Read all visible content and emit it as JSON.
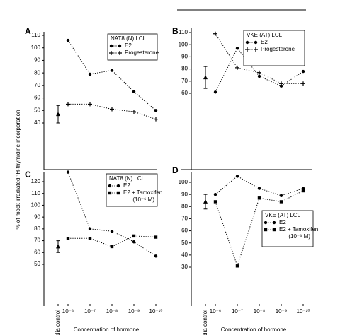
{
  "ylabel": "% of mock irradiated ³H-thymidine incorporation",
  "chart_data": [
    {
      "type": "line",
      "label": "A",
      "legend_title": "NAT8 (N) LCL",
      "ylim": [
        40,
        110
      ],
      "yticks": [
        40,
        50,
        60,
        70,
        80,
        90,
        100,
        110
      ],
      "control": {
        "value": 47,
        "error": 7
      },
      "series": [
        {
          "name": "E2",
          "color": "#000000",
          "marker": "circle",
          "values": [
            null,
            106,
            79,
            82,
            65,
            50
          ]
        },
        {
          "name": "Progesterone",
          "color": "#000000",
          "marker": "plus",
          "values": [
            null,
            55,
            55,
            51,
            49,
            43
          ]
        }
      ]
    },
    {
      "type": "line",
      "label": "B",
      "legend_title": "VKE (AT) LCL",
      "ylim": [
        60,
        110
      ],
      "yticks": [
        60,
        70,
        80,
        90,
        100,
        110
      ],
      "control": {
        "value": 73,
        "error": 9
      },
      "series": [
        {
          "name": "E2",
          "color": "#000000",
          "marker": "circle",
          "values": [
            null,
            61,
            97,
            74,
            66,
            78
          ]
        },
        {
          "name": "Progesterone",
          "color": "#000000",
          "marker": "plus",
          "values": [
            null,
            109,
            81,
            77,
            68,
            68
          ]
        }
      ]
    },
    {
      "type": "line",
      "label": "C",
      "legend_title": "NAT8 (N) LCL",
      "legend_note": "(10⁻⁶ M)",
      "categories": [
        "Media control",
        "10⁻⁶",
        "10⁻⁷",
        "10⁻⁸",
        "10⁻⁹",
        "10⁻¹⁰"
      ],
      "xlabel": "Concentration of hormone",
      "ylim": [
        50,
        120
      ],
      "yticks": [
        50,
        60,
        70,
        80,
        90,
        100,
        110,
        120
      ],
      "control": {
        "value": 65,
        "error": 5
      },
      "series": [
        {
          "name": "E2",
          "color": "#000000",
          "marker": "circle",
          "values": [
            null,
            128,
            80,
            78,
            69,
            57
          ]
        },
        {
          "name": "E2 + Tamoxifen",
          "color": "#000000",
          "marker": "square",
          "values": [
            null,
            72,
            72,
            65,
            74,
            73
          ]
        }
      ]
    },
    {
      "type": "line",
      "label": "D",
      "legend_title": "VKE (AT) LCL",
      "legend_note": "(10⁻⁶ M)",
      "categories": [
        "Media control",
        "10⁻⁶",
        "10⁻⁷",
        "10⁻⁸",
        "10⁻⁹",
        "10⁻¹⁰"
      ],
      "xlabel": "Concentration of hormone",
      "ylim": [
        30,
        100
      ],
      "yticks": [
        30,
        40,
        50,
        60,
        70,
        80,
        90,
        100
      ],
      "control": {
        "value": 84,
        "error": 6
      },
      "series": [
        {
          "name": "E2",
          "color": "#000000",
          "marker": "circle",
          "values": [
            null,
            90,
            105,
            95,
            89,
            95
          ]
        },
        {
          "name": "E2 + Tamoxifen",
          "color": "#000000",
          "marker": "square",
          "values": [
            null,
            84,
            31,
            87,
            84,
            93
          ]
        }
      ]
    }
  ]
}
